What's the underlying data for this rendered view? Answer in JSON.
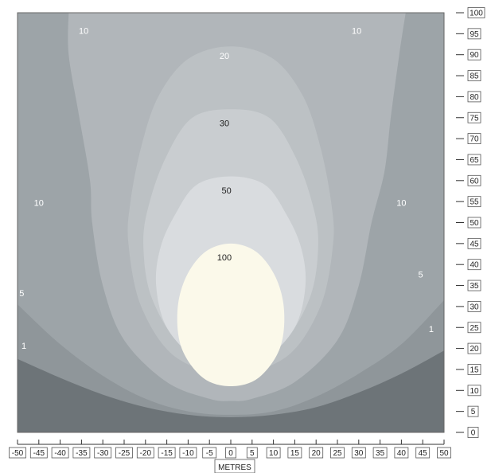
{
  "chart_data": {
    "type": "contour",
    "title": "",
    "xlabel": "METRES",
    "ylabel": "",
    "xlim": [
      -50,
      50
    ],
    "ylim": [
      0,
      100
    ],
    "x_ticks": [
      "-50",
      "-45",
      "-40",
      "-35",
      "-30",
      "-25",
      "-20",
      "-15",
      "-10",
      "-5",
      "0",
      "5",
      "10",
      "15",
      "20",
      "25",
      "30",
      "35",
      "40",
      "45",
      "50"
    ],
    "y_ticks": [
      "0",
      "5",
      "10",
      "15",
      "20",
      "25",
      "30",
      "35",
      "40",
      "45",
      "50",
      "55",
      "60",
      "65",
      "70",
      "75",
      "80",
      "85",
      "90",
      "95",
      "100"
    ],
    "levels": [
      {
        "value": 1,
        "color": "#8f969a",
        "outline": [
          [
            -50,
            17.5
          ],
          [
            -40,
            13
          ],
          [
            -30,
            9
          ],
          [
            -20,
            6
          ],
          [
            -10,
            4.2
          ],
          [
            0,
            3.6
          ],
          [
            10,
            4.2
          ],
          [
            20,
            6
          ],
          [
            30,
            9.5
          ],
          [
            40,
            14
          ],
          [
            50,
            19.5
          ]
        ]
      },
      {
        "value": 5,
        "color": "#9da4a8",
        "outline": [
          [
            -50,
            30.5
          ],
          [
            -40,
            21
          ],
          [
            -30,
            13.5
          ],
          [
            -20,
            8
          ],
          [
            -10,
            5
          ],
          [
            0,
            4.2
          ],
          [
            10,
            5
          ],
          [
            20,
            8.5
          ],
          [
            30,
            14
          ],
          [
            40,
            21
          ],
          [
            50,
            31.5
          ]
        ]
      },
      {
        "value": 10,
        "color": "#b1b6ba",
        "outline": [
          [
            -38,
            100
          ],
          [
            -38,
            90
          ],
          [
            -35.5,
            75
          ],
          [
            -33,
            60
          ],
          [
            -32.5,
            50
          ],
          [
            -30,
            35
          ],
          [
            -25,
            22
          ],
          [
            -15,
            12
          ],
          [
            -5,
            8
          ],
          [
            0,
            7.5
          ],
          [
            5,
            8
          ],
          [
            15,
            12
          ],
          [
            25,
            22
          ],
          [
            30,
            35
          ],
          [
            33,
            50
          ],
          [
            36,
            62
          ],
          [
            37.5,
            75
          ],
          [
            39.5,
            90
          ],
          [
            41,
            100
          ]
        ]
      },
      {
        "value": 20,
        "color": "#bcc1c4",
        "outline": [
          [
            0,
            92
          ],
          [
            10,
            89
          ],
          [
            17,
            80
          ],
          [
            21,
            68
          ],
          [
            23.5,
            55
          ],
          [
            24,
            45
          ],
          [
            21,
            30
          ],
          [
            13,
            18
          ],
          [
            0,
            14
          ],
          [
            -13,
            18
          ],
          [
            -21,
            30
          ],
          [
            -24,
            45
          ],
          [
            -23.5,
            55
          ],
          [
            -21,
            68
          ],
          [
            -17,
            80
          ],
          [
            -10,
            89
          ]
        ]
      },
      {
        "value": 30,
        "color": "#c9cdd0",
        "outline": [
          [
            0,
            77
          ],
          [
            9,
            75
          ],
          [
            15,
            66
          ],
          [
            19,
            55
          ],
          [
            20.5,
            45
          ],
          [
            18.5,
            32
          ],
          [
            11,
            20
          ],
          [
            0,
            16
          ],
          [
            -11,
            20
          ],
          [
            -18.5,
            32
          ],
          [
            -20.5,
            45
          ],
          [
            -19,
            55
          ],
          [
            -15,
            66
          ],
          [
            -9,
            75
          ]
        ]
      },
      {
        "value": 50,
        "color": "#d9dcdf",
        "outline": [
          [
            0,
            61
          ],
          [
            8,
            59
          ],
          [
            13,
            52
          ],
          [
            16.5,
            44
          ],
          [
            17.5,
            35
          ],
          [
            15,
            25
          ],
          [
            8,
            17.5
          ],
          [
            0,
            15.5
          ],
          [
            -8,
            17.5
          ],
          [
            -15,
            25
          ],
          [
            -17.5,
            35
          ],
          [
            -16.5,
            44
          ],
          [
            -13,
            52
          ],
          [
            -8,
            59
          ]
        ]
      },
      {
        "value": 100,
        "color": "#fbf9ea",
        "outline": [
          [
            0,
            45
          ],
          [
            6,
            43
          ],
          [
            10.5,
            37
          ],
          [
            12.5,
            29
          ],
          [
            11.5,
            20
          ],
          [
            6.5,
            13
          ],
          [
            0,
            11
          ],
          [
            -6.5,
            13
          ],
          [
            -11.5,
            20
          ],
          [
            -12.5,
            29
          ],
          [
            -10.5,
            37
          ],
          [
            -6,
            43
          ]
        ]
      }
    ],
    "contour_labels": [
      {
        "text": "10",
        "x": -34.5,
        "y": 95.5,
        "color": "#ffffff"
      },
      {
        "text": "10",
        "x": 29.5,
        "y": 95.5,
        "color": "#ffffff"
      },
      {
        "text": "20",
        "x": -1.5,
        "y": 89.5,
        "color": "#ffffff"
      },
      {
        "text": "30",
        "x": -1.5,
        "y": 73.5,
        "color": "#222222"
      },
      {
        "text": "50",
        "x": -1,
        "y": 57.5,
        "color": "#222222"
      },
      {
        "text": "10",
        "x": -45,
        "y": 54.5,
        "color": "#ffffff"
      },
      {
        "text": "10",
        "x": 40,
        "y": 54.5,
        "color": "#ffffff"
      },
      {
        "text": "100",
        "x": -1.5,
        "y": 41.5,
        "color": "#222222"
      },
      {
        "text": "5",
        "x": -49,
        "y": 33,
        "color": "#ffffff"
      },
      {
        "text": "5",
        "x": 44.5,
        "y": 37.5,
        "color": "#ffffff"
      },
      {
        "text": "1",
        "x": -48.5,
        "y": 20.5,
        "color": "#ffffff"
      },
      {
        "text": "1",
        "x": 47,
        "y": 24.5,
        "color": "#ffffff"
      }
    ],
    "colors": {
      "background": "#6d7478",
      "border": "#555555"
    },
    "grid": false
  }
}
